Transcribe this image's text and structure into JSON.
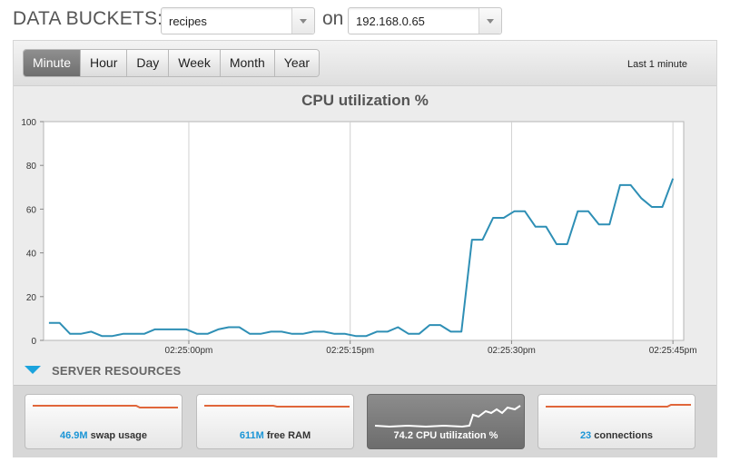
{
  "header": {
    "title": "DATA BUCKETS:",
    "connector": "on",
    "bucket_select": "recipes",
    "host_select": "192.168.0.65"
  },
  "tabs": [
    {
      "label": "Minute",
      "active": true
    },
    {
      "label": "Hour",
      "active": false
    },
    {
      "label": "Day",
      "active": false
    },
    {
      "label": "Week",
      "active": false
    },
    {
      "label": "Month",
      "active": false
    },
    {
      "label": "Year",
      "active": false
    }
  ],
  "range_label": "Last 1 minute",
  "chart_data": {
    "type": "line",
    "title": "CPU utilization %",
    "ylim": [
      0,
      100
    ],
    "yticks": [
      0,
      20,
      40,
      60,
      80,
      100
    ],
    "xlim_seconds": [
      -13.5,
      46
    ],
    "xticks": [
      {
        "seconds": 0,
        "label": "02:25:00pm"
      },
      {
        "seconds": 15,
        "label": "02:25:15pm"
      },
      {
        "seconds": 30,
        "label": "02:25:30pm"
      },
      {
        "seconds": 45,
        "label": "02:25:45pm"
      }
    ],
    "grid": true,
    "line_color": "#2e8fb5",
    "series": [
      {
        "values": [
          8,
          8,
          3,
          3,
          4,
          2,
          2,
          3,
          3,
          3,
          5,
          5,
          5,
          5,
          3,
          3,
          5,
          6,
          6,
          3,
          3,
          4,
          4,
          3,
          3,
          4,
          4,
          3,
          3,
          2,
          2,
          4,
          4,
          6,
          3,
          3,
          7,
          7,
          4,
          4,
          46,
          46,
          56,
          56,
          59,
          59,
          52,
          52,
          44,
          44,
          59,
          59,
          53,
          53,
          71,
          71,
          65,
          61,
          61,
          74
        ]
      }
    ]
  },
  "section": {
    "title": "SERVER RESOURCES"
  },
  "resources": [
    {
      "value": "46.9M",
      "label": "swap usage",
      "active": false,
      "color": "#e0663a"
    },
    {
      "value": "611M",
      "label": "free RAM",
      "active": false,
      "color": "#e0663a"
    },
    {
      "value": "74.2",
      "label": "CPU utilization %",
      "active": true,
      "color": "#ffffff"
    },
    {
      "value": "23",
      "label": "connections",
      "active": false,
      "color": "#e0663a"
    }
  ]
}
